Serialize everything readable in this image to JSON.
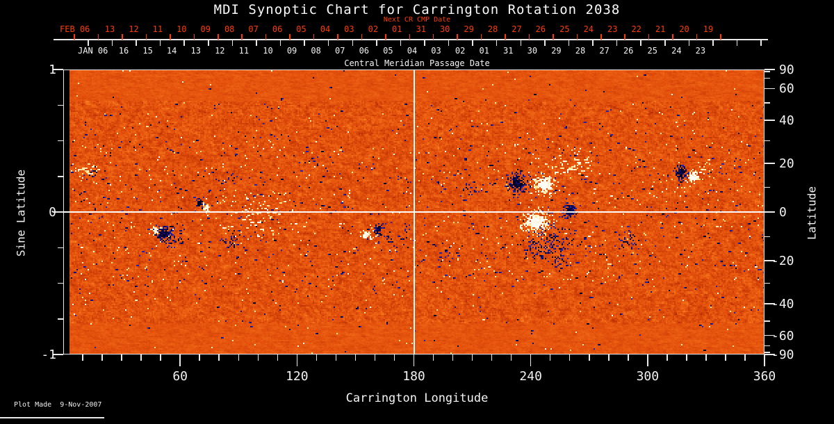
{
  "title": "MDI Synoptic Chart for Carrington Rotation 2038",
  "top_axis": {
    "label": "Next CR CMP Date",
    "month": "FEB 06",
    "color": "#ff3c00",
    "dates": [
      "13",
      "12",
      "11",
      "10",
      "09",
      "08",
      "07",
      "06",
      "05",
      "04",
      "03",
      "02",
      "01",
      "31",
      "30",
      "29",
      "28",
      "27",
      "26",
      "25",
      "24",
      "23",
      "22",
      "21",
      "20",
      "19"
    ]
  },
  "cmp_axis": {
    "label": "Central Meridian Passage Date",
    "month": "JAN 06",
    "dates": [
      "16",
      "15",
      "14",
      "13",
      "12",
      "11",
      "10",
      "09",
      "08",
      "07",
      "06",
      "05",
      "04",
      "03",
      "02",
      "01",
      "31",
      "30",
      "29",
      "28",
      "27",
      "26",
      "25",
      "24",
      "23"
    ]
  },
  "left_axis": {
    "title": "Sine Latitude",
    "labels": [
      "1",
      "0",
      "-1"
    ]
  },
  "right_axis": {
    "title": "Latitude",
    "labels": [
      "90",
      "60",
      "40",
      "20",
      "0",
      "-20",
      "-40",
      "-60",
      "-90"
    ]
  },
  "bottom_axis": {
    "title": "Carrington Longitude",
    "labels": [
      "60",
      "120",
      "180",
      "240",
      "300",
      "360"
    ]
  },
  "footer": {
    "note": "Plot Made  9-Nov-2007"
  },
  "chart_data": {
    "type": "heatmap",
    "title": "MDI Synoptic Chart for Carrington Rotation 2038",
    "xlabel": "Carrington Longitude",
    "xlim": [
      0,
      360
    ],
    "x_major_ticks": [
      60,
      120,
      180,
      240,
      300,
      360
    ],
    "x_minor_tick_step_deg": 10,
    "ylabel_left": "Sine Latitude",
    "ylim_sine": [
      -1,
      1
    ],
    "y_left_ticks": [
      1,
      0.75,
      0.5,
      0.25,
      0,
      -0.25,
      -0.5,
      -0.75,
      -1
    ],
    "y_left_labeled": [
      1,
      0,
      -1
    ],
    "ylabel_right": "Latitude",
    "y_right_labeled_deg": [
      90,
      60,
      40,
      20,
      0,
      -20,
      -40,
      -60,
      -90
    ],
    "y_right_tick_step_deg": 10,
    "reference_lines": {
      "longitude_deg": 180,
      "sine_latitude": 0
    },
    "data_gap_longitude_deg": [
      0,
      3.2
    ],
    "colors": {
      "background": "#000000",
      "secondary_axis": "#ff3c00",
      "grid_line": "#ffffff",
      "quiet_sun_palette": [
        "#4a0400",
        "#921c00",
        "#c83a06",
        "#e5520d",
        "#f06c17",
        "#fb9130",
        "#ffc864"
      ],
      "negative_core": [
        "#000020",
        "#06063a",
        "#0d0d66"
      ],
      "negative_speckle": [
        "#000030",
        "#12127e",
        "#2424a6"
      ],
      "positive_core": [
        "#ffffff",
        "#fffdf4",
        "#fff4d6"
      ],
      "positive_speckle": [
        "#fffef6",
        "#ffedb2",
        "#ffe38a"
      ]
    },
    "active_regions": [
      {
        "lon": 12,
        "slat": 0.3,
        "rlon": 5.0,
        "rslat": 0.06,
        "polarity": "positive",
        "style": "plage",
        "strength": 0.55
      },
      {
        "lon": 14,
        "slat": 0.27,
        "rlon": 3.0,
        "rslat": 0.04,
        "polarity": "negative",
        "style": "speckle",
        "strength": 0.3
      },
      {
        "lon": 47,
        "slat": -0.13,
        "rlon": 2.2,
        "rslat": 0.035,
        "polarity": "positive",
        "style": "spot",
        "strength": 0.95
      },
      {
        "lon": 51,
        "slat": -0.15,
        "rlon": 4.5,
        "rslat": 0.06,
        "polarity": "negative",
        "style": "spot",
        "strength": 0.85
      },
      {
        "lon": 56,
        "slat": -0.18,
        "rlon": 5.0,
        "rslat": 0.07,
        "polarity": "negative",
        "style": "speckle",
        "strength": 0.45
      },
      {
        "lon": 70,
        "slat": 0.06,
        "rlon": 2.4,
        "rslat": 0.045,
        "polarity": "negative",
        "style": "spot",
        "strength": 1.0
      },
      {
        "lon": 73.5,
        "slat": 0.025,
        "rlon": 2.0,
        "rslat": 0.04,
        "polarity": "positive",
        "style": "spot",
        "strength": 1.0
      },
      {
        "lon": 85,
        "slat": 0.25,
        "rlon": 4.0,
        "rslat": 0.05,
        "polarity": "negative",
        "style": "speckle",
        "strength": 0.4
      },
      {
        "lon": 87,
        "slat": -0.2,
        "rlon": 5.0,
        "rslat": 0.06,
        "polarity": "negative",
        "style": "speckle",
        "strength": 0.5
      },
      {
        "lon": 100,
        "slat": -0.03,
        "rlon": 16.0,
        "rslat": 0.12,
        "polarity": "positive",
        "style": "plage",
        "strength": 0.3
      },
      {
        "lon": 156,
        "slat": -0.16,
        "rlon": 3.5,
        "rslat": 0.035,
        "polarity": "positive",
        "style": "spot",
        "strength": 0.85
      },
      {
        "lon": 162,
        "slat": -0.12,
        "rlon": 2.5,
        "rslat": 0.05,
        "polarity": "negative",
        "style": "spot",
        "strength": 0.85
      },
      {
        "lon": 170,
        "slat": -0.18,
        "rlon": 7.0,
        "rslat": 0.09,
        "polarity": "negative",
        "style": "speckle",
        "strength": 0.3
      },
      {
        "lon": 196,
        "slat": -0.28,
        "rlon": 4.0,
        "rslat": 0.05,
        "polarity": "negative",
        "style": "speckle",
        "strength": 0.4
      },
      {
        "lon": 210,
        "slat": 0.17,
        "rlon": 5.0,
        "rslat": 0.07,
        "polarity": "negative",
        "style": "speckle",
        "strength": 0.35
      },
      {
        "lon": 233,
        "slat": 0.2,
        "rlon": 5.5,
        "rslat": 0.085,
        "polarity": "negative",
        "style": "spot",
        "strength": 0.95
      },
      {
        "lon": 247,
        "slat": 0.19,
        "rlon": 6.5,
        "rslat": 0.075,
        "polarity": "positive",
        "style": "spot",
        "strength": 0.9
      },
      {
        "lon": 260,
        "slat": 0.01,
        "rlon": 4.5,
        "rslat": 0.055,
        "polarity": "negative",
        "style": "spot",
        "strength": 0.95
      },
      {
        "lon": 243,
        "slat": -0.07,
        "rlon": 8.0,
        "rslat": 0.09,
        "polarity": "positive",
        "style": "spot",
        "strength": 0.8
      },
      {
        "lon": 250,
        "slat": -0.24,
        "rlon": 11.0,
        "rslat": 0.13,
        "polarity": "negative",
        "style": "speckle",
        "strength": 0.5
      },
      {
        "lon": 262,
        "slat": 0.33,
        "rlon": 9.0,
        "rslat": 0.07,
        "polarity": "positive",
        "style": "plage",
        "strength": 0.5
      },
      {
        "lon": 290,
        "slat": -0.22,
        "rlon": 6.0,
        "rslat": 0.07,
        "polarity": "negative",
        "style": "speckle",
        "strength": 0.3
      },
      {
        "lon": 317,
        "slat": 0.28,
        "rlon": 3.5,
        "rslat": 0.055,
        "polarity": "negative",
        "style": "spot",
        "strength": 0.95
      },
      {
        "lon": 324,
        "slat": 0.245,
        "rlon": 4.0,
        "rslat": 0.05,
        "polarity": "positive",
        "style": "spot",
        "strength": 0.9
      },
      {
        "lon": 330,
        "slat": 0.31,
        "rlon": 5.0,
        "rslat": 0.05,
        "polarity": "positive",
        "style": "plage",
        "strength": 0.35
      }
    ]
  }
}
